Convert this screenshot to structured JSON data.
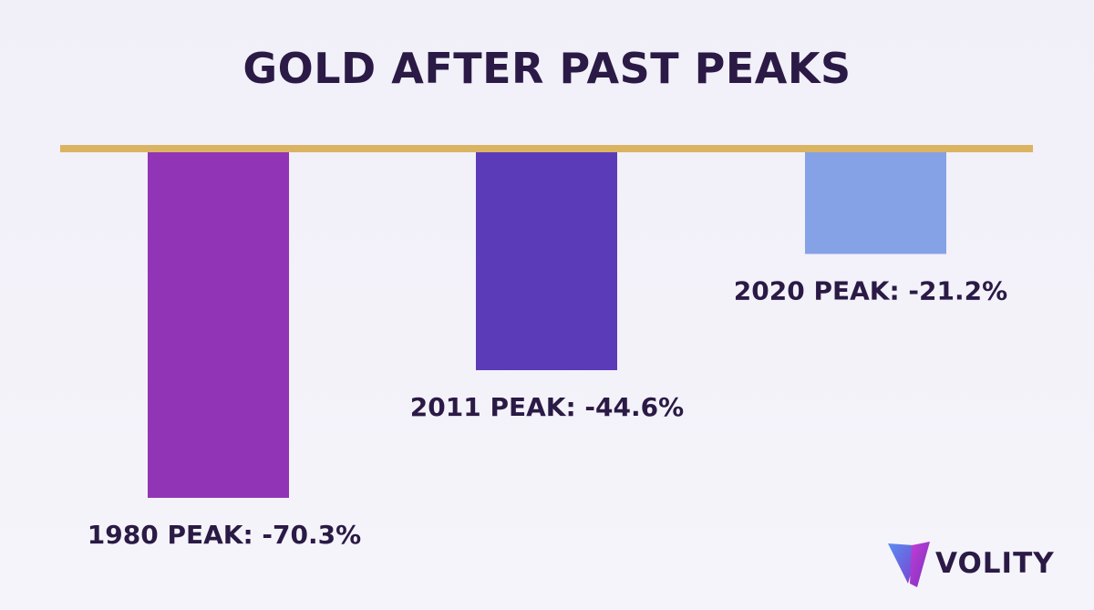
{
  "colors": {
    "text": "#2a1a45",
    "baseline": "#dbb462",
    "background": "#f3f1f9"
  },
  "brand": {
    "name": "VOLITY",
    "icon": "volity-logo-icon"
  },
  "chart_data": {
    "type": "bar",
    "title": "GOLD AFTER PAST PEAKS",
    "xlabel": "",
    "ylabel": "",
    "ylim": [
      -80,
      0
    ],
    "grid": false,
    "categories": [
      "1980 PEAK",
      "2011 PEAK",
      "2020 PEAK"
    ],
    "values": [
      -70.3,
      -44.6,
      -21.2
    ],
    "labels": [
      "1980 PEAK: -70.3%",
      "2011 PEAK: -44.6%",
      "2020 PEAK: -21.2%"
    ],
    "bar_colors": [
      "#9234b6",
      "#5c3bb8",
      "#86a2e6"
    ]
  }
}
